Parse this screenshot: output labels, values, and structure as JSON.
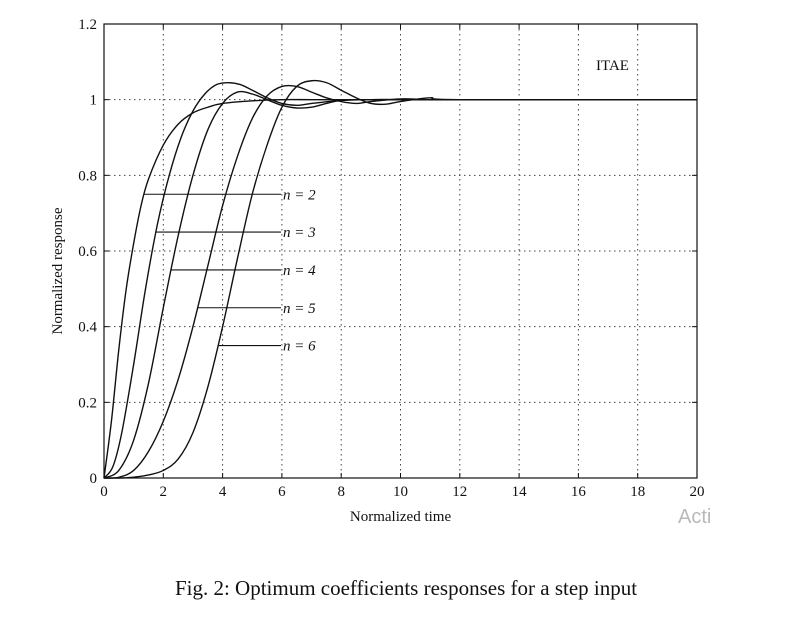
{
  "chart_data": {
    "type": "line",
    "title": "",
    "annotation": "ITAE",
    "xlabel": "Normalized time",
    "ylabel": "Normalized response",
    "xlim": [
      0,
      20
    ],
    "ylim": [
      0,
      1.2
    ],
    "xticks": [
      0,
      2,
      4,
      6,
      8,
      10,
      12,
      14,
      16,
      18,
      20
    ],
    "yticks": [
      0,
      0.2,
      0.4,
      0.6,
      0.8,
      1,
      1.2
    ],
    "xtick_labels": [
      "0",
      "2",
      "4",
      "6",
      "8",
      "10",
      "12",
      "14",
      "16",
      "18",
      "20"
    ],
    "ytick_labels": [
      "0",
      "0.2",
      "0.4",
      "0.6",
      "0.8",
      "1",
      "1.2"
    ],
    "grid": true,
    "legend": "inline labels with leader lines",
    "series": [
      {
        "name": "n = 2",
        "label_y": 0.75,
        "x": [
          0,
          0.25,
          0.5,
          0.75,
          1,
          1.25,
          1.5,
          2,
          2.5,
          3,
          3.5,
          4,
          5,
          6,
          7,
          8,
          10,
          12,
          20
        ],
        "y": [
          0,
          0.15,
          0.34,
          0.5,
          0.62,
          0.72,
          0.79,
          0.88,
          0.935,
          0.965,
          0.98,
          0.99,
          0.997,
          1.0,
          1.0,
          1.0,
          1.0,
          1.0,
          1.0
        ]
      },
      {
        "name": "n = 3",
        "label_y": 0.65,
        "x": [
          0,
          0.3,
          0.6,
          1.0,
          1.4,
          1.8,
          2.2,
          2.6,
          3.0,
          3.4,
          3.8,
          4.2,
          4.6,
          5.0,
          5.5,
          6.0,
          6.5,
          7.0,
          8.0,
          9.0,
          10.0,
          12.0,
          20.0
        ],
        "y": [
          0,
          0.03,
          0.12,
          0.3,
          0.5,
          0.67,
          0.8,
          0.9,
          0.97,
          1.015,
          1.04,
          1.045,
          1.04,
          1.025,
          1.005,
          0.99,
          0.985,
          0.99,
          0.998,
          1.0,
          1.0,
          1.0,
          1.0
        ]
      },
      {
        "name": "n = 4",
        "label_y": 0.55,
        "x": [
          0,
          0.5,
          1.0,
          1.5,
          2.0,
          2.5,
          3.0,
          3.5,
          4.0,
          4.5,
          5.0,
          5.5,
          6.0,
          6.5,
          7.0,
          7.5,
          8.0,
          9.0,
          10.0,
          12.0,
          20.0
        ],
        "y": [
          0,
          0.02,
          0.1,
          0.25,
          0.45,
          0.64,
          0.8,
          0.92,
          0.99,
          1.02,
          1.015,
          1.0,
          0.985,
          0.978,
          0.98,
          0.99,
          0.998,
          1.0,
          1.0,
          1.0,
          1.0
        ]
      },
      {
        "name": "n = 5",
        "label_y": 0.45,
        "x": [
          0,
          0.5,
          1.0,
          1.5,
          2.0,
          2.5,
          3.0,
          3.5,
          4.0,
          4.5,
          5.0,
          5.5,
          6.0,
          6.5,
          7.0,
          7.5,
          8.0,
          8.5,
          9.0,
          10.0,
          11.0,
          12.0,
          20.0
        ],
        "y": [
          0,
          0.002,
          0.02,
          0.07,
          0.15,
          0.26,
          0.4,
          0.56,
          0.72,
          0.85,
          0.95,
          1.01,
          1.035,
          1.035,
          1.02,
          1.005,
          0.995,
          0.99,
          0.995,
          1.002,
          1.0,
          1.0,
          1.0
        ]
      },
      {
        "name": "n = 6",
        "label_y": 0.35,
        "x": [
          0,
          0.5,
          1.0,
          1.5,
          2.0,
          2.5,
          3.0,
          3.5,
          4.0,
          4.5,
          5.0,
          5.5,
          6.0,
          6.5,
          7.0,
          7.5,
          8.0,
          8.5,
          9.0,
          9.5,
          10.0,
          11.0,
          12.0,
          20.0
        ],
        "y": [
          0,
          0.0,
          0.002,
          0.008,
          0.02,
          0.05,
          0.12,
          0.24,
          0.4,
          0.58,
          0.75,
          0.88,
          0.98,
          1.035,
          1.05,
          1.045,
          1.025,
          1.005,
          0.99,
          0.988,
          0.995,
          1.005,
          1.0,
          1.0
        ]
      }
    ]
  },
  "caption": "Fig. 2: Optimum coefficients responses for a step input",
  "watermark_text": "Acti",
  "colors": {
    "line": "#111111",
    "grid": "#444444",
    "text": "#111111"
  }
}
